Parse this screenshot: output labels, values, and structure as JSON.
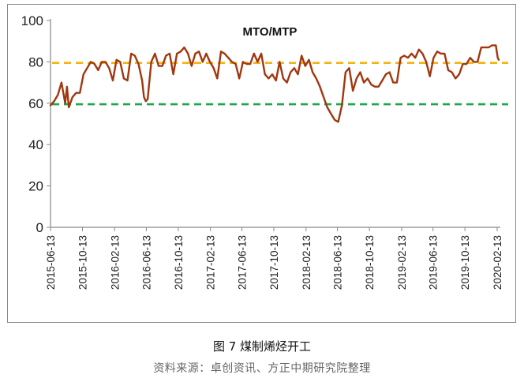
{
  "figure": {
    "caption": "图 7  煤制烯烃开工",
    "source": "资料来源：卓创资讯、方正中期研究院整理"
  },
  "chart_data": {
    "type": "line",
    "title": "MTO/MTP",
    "xlabel": "",
    "ylabel": "",
    "ylim": [
      0,
      100
    ],
    "yticks": [
      0,
      20,
      40,
      60,
      80,
      100
    ],
    "xlim": [
      "2015-06-13",
      "2020-02-13"
    ],
    "xticks": [
      "2015-06-13",
      "2015-10-13",
      "2016-02-13",
      "2016-06-13",
      "2016-10-13",
      "2017-02-13",
      "2017-06-13",
      "2017-10-13",
      "2018-02-13",
      "2018-06-13",
      "2018-10-13",
      "2019-02-13",
      "2019-06-13",
      "2019-10-13",
      "2020-02-13"
    ],
    "grid": false,
    "legend": "none",
    "colors": {
      "series": "#a0370f",
      "upper_ref": "#f2b411",
      "lower_ref": "#1fa64b"
    },
    "reference_lines": [
      {
        "value": 79.5,
        "style": "dashed",
        "color": "#f2b411"
      },
      {
        "value": 59.5,
        "style": "dashed",
        "color": "#1fa64b"
      }
    ],
    "series": [
      {
        "values": [
          [
            "2015-06-13",
            59
          ],
          [
            "2015-06-27",
            61
          ],
          [
            "2015-07-11",
            64
          ],
          [
            "2015-07-25",
            70
          ],
          [
            "2015-08-08",
            60
          ],
          [
            "2015-08-15",
            68
          ],
          [
            "2015-08-22",
            58
          ],
          [
            "2015-09-05",
            63
          ],
          [
            "2015-09-19",
            65
          ],
          [
            "2015-10-03",
            65
          ],
          [
            "2015-10-17",
            74
          ],
          [
            "2015-10-31",
            77
          ],
          [
            "2015-11-14",
            80
          ],
          [
            "2015-11-28",
            79
          ],
          [
            "2015-12-12",
            76
          ],
          [
            "2015-12-26",
            80
          ],
          [
            "2016-01-09",
            80
          ],
          [
            "2016-01-23",
            77
          ],
          [
            "2016-02-06",
            71
          ],
          [
            "2016-02-20",
            81
          ],
          [
            "2016-03-05",
            80
          ],
          [
            "2016-03-19",
            72
          ],
          [
            "2016-04-02",
            71
          ],
          [
            "2016-04-16",
            84
          ],
          [
            "2016-04-30",
            83
          ],
          [
            "2016-05-14",
            79
          ],
          [
            "2016-05-28",
            71
          ],
          [
            "2016-06-04",
            63
          ],
          [
            "2016-06-11",
            61
          ],
          [
            "2016-06-18",
            62
          ],
          [
            "2016-07-02",
            80
          ],
          [
            "2016-07-16",
            84
          ],
          [
            "2016-07-30",
            78
          ],
          [
            "2016-08-13",
            78
          ],
          [
            "2016-08-27",
            83
          ],
          [
            "2016-09-10",
            84
          ],
          [
            "2016-09-24",
            74
          ],
          [
            "2016-10-08",
            84
          ],
          [
            "2016-10-22",
            85
          ],
          [
            "2016-11-05",
            87
          ],
          [
            "2016-11-19",
            84
          ],
          [
            "2016-12-03",
            78
          ],
          [
            "2016-12-17",
            84
          ],
          [
            "2016-12-31",
            85
          ],
          [
            "2017-01-14",
            80
          ],
          [
            "2017-01-28",
            84
          ],
          [
            "2017-02-11",
            80
          ],
          [
            "2017-02-25",
            77
          ],
          [
            "2017-03-11",
            72
          ],
          [
            "2017-03-25",
            85
          ],
          [
            "2017-04-08",
            84
          ],
          [
            "2017-04-22",
            82
          ],
          [
            "2017-05-06",
            80
          ],
          [
            "2017-05-20",
            79
          ],
          [
            "2017-06-03",
            72
          ],
          [
            "2017-06-17",
            80
          ],
          [
            "2017-07-01",
            79
          ],
          [
            "2017-07-15",
            79
          ],
          [
            "2017-07-29",
            84
          ],
          [
            "2017-08-12",
            80
          ],
          [
            "2017-08-26",
            84
          ],
          [
            "2017-09-09",
            74
          ],
          [
            "2017-09-23",
            72
          ],
          [
            "2017-10-07",
            74
          ],
          [
            "2017-10-21",
            71
          ],
          [
            "2017-11-04",
            80
          ],
          [
            "2017-11-18",
            72
          ],
          [
            "2017-12-02",
            70
          ],
          [
            "2017-12-16",
            75
          ],
          [
            "2017-12-30",
            77
          ],
          [
            "2018-01-13",
            74
          ],
          [
            "2018-01-27",
            83
          ],
          [
            "2018-02-10",
            78
          ],
          [
            "2018-02-24",
            81
          ],
          [
            "2018-03-10",
            75
          ],
          [
            "2018-03-24",
            72
          ],
          [
            "2018-04-07",
            68
          ],
          [
            "2018-04-21",
            63
          ],
          [
            "2018-05-05",
            58
          ],
          [
            "2018-05-19",
            55
          ],
          [
            "2018-06-02",
            52
          ],
          [
            "2018-06-16",
            51
          ],
          [
            "2018-06-30",
            59
          ],
          [
            "2018-07-14",
            75
          ],
          [
            "2018-07-28",
            77
          ],
          [
            "2018-08-11",
            66
          ],
          [
            "2018-08-25",
            72
          ],
          [
            "2018-09-08",
            75
          ],
          [
            "2018-09-22",
            70
          ],
          [
            "2018-10-06",
            72
          ],
          [
            "2018-10-20",
            69
          ],
          [
            "2018-11-03",
            68
          ],
          [
            "2018-11-17",
            68
          ],
          [
            "2018-12-01",
            71
          ],
          [
            "2018-12-15",
            74
          ],
          [
            "2018-12-29",
            75
          ],
          [
            "2019-01-12",
            70
          ],
          [
            "2019-01-26",
            70
          ],
          [
            "2019-02-09",
            82
          ],
          [
            "2019-02-23",
            83
          ],
          [
            "2019-03-09",
            82
          ],
          [
            "2019-03-23",
            84
          ],
          [
            "2019-04-06",
            82
          ],
          [
            "2019-04-20",
            86
          ],
          [
            "2019-05-04",
            84
          ],
          [
            "2019-05-18",
            80
          ],
          [
            "2019-06-01",
            73
          ],
          [
            "2019-06-15",
            82
          ],
          [
            "2019-06-29",
            85
          ],
          [
            "2019-07-13",
            84
          ],
          [
            "2019-07-27",
            84
          ],
          [
            "2019-08-10",
            76
          ],
          [
            "2019-08-24",
            75
          ],
          [
            "2019-09-07",
            72
          ],
          [
            "2019-09-21",
            74
          ],
          [
            "2019-10-05",
            79
          ],
          [
            "2019-10-19",
            79
          ],
          [
            "2019-11-02",
            82
          ],
          [
            "2019-11-16",
            80
          ],
          [
            "2019-11-30",
            80
          ],
          [
            "2019-12-14",
            87
          ],
          [
            "2019-12-28",
            87
          ],
          [
            "2020-01-11",
            87
          ],
          [
            "2020-01-25",
            88
          ],
          [
            "2020-02-08",
            88
          ],
          [
            "2020-02-15",
            82
          ],
          [
            "2020-02-19",
            81
          ]
        ]
      }
    ]
  }
}
